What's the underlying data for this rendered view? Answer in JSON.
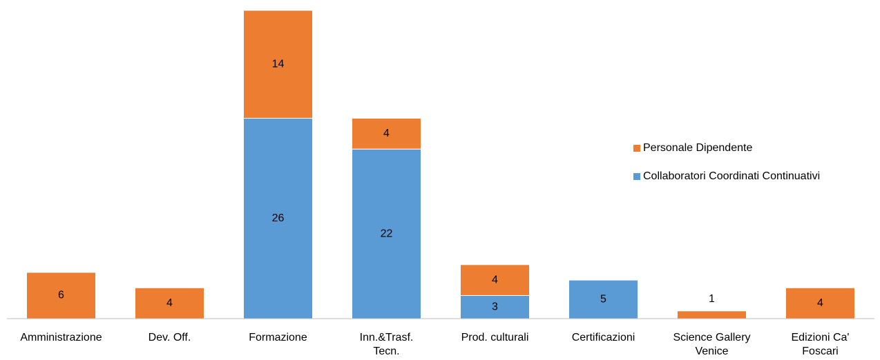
{
  "chart_data": {
    "type": "stacked_bar",
    "categories": [
      "Amministrazione",
      "Dev. Off.",
      "Formazione",
      "Inn.&Trasf.\nTecn.",
      "Prod. culturali",
      "Certificazioni",
      "Science Gallery\nVenice",
      "Edizioni Ca'\nFoscari"
    ],
    "series": [
      {
        "name": "Collaboratori Coordinati Continuativi",
        "color": "#5b9bd5",
        "values": [
          null,
          null,
          26,
          22,
          3,
          5,
          null,
          null
        ]
      },
      {
        "name": "Personale Dipendente",
        "color": "#ed7d31",
        "values": [
          6,
          4,
          14,
          4,
          4,
          null,
          1,
          4
        ]
      }
    ],
    "ylim": [
      0,
      40
    ]
  }
}
